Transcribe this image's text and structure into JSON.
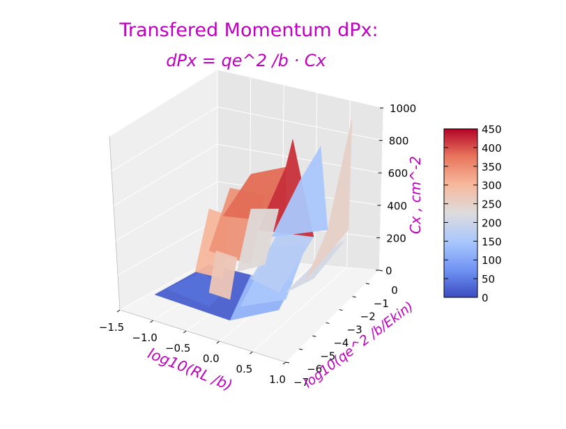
{
  "chart_data": {
    "type": "surface-3d",
    "title": "Transfered Momentum dPx:",
    "subtitle": "dPx = qe^2 /b · Cx",
    "title_color": "#c000c0",
    "x_axis": {
      "label": "log10(RL /b)",
      "ticks": [
        "−1.5",
        "−1.0",
        "−0.5",
        "0.0",
        "0.5",
        "1.0"
      ],
      "tick_values": [
        -1.5,
        -1.0,
        -0.5,
        0.0,
        0.5,
        1.0
      ],
      "range": [
        -1.5,
        1.0
      ]
    },
    "y_axis": {
      "label": "log10(qe^2 /b/Ekin)",
      "ticks": [
        "0",
        "−1",
        "−2",
        "−3",
        "−4",
        "−5",
        "−6",
        "−7"
      ],
      "tick_values": [
        0,
        -1,
        -2,
        -3,
        -4,
        -5,
        -6,
        -7
      ],
      "range": [
        -7,
        0
      ]
    },
    "z_axis": {
      "label": "Cx , cm^-2",
      "ticks": [
        "0",
        "200",
        "400",
        "600",
        "800",
        "1000"
      ],
      "tick_values": [
        0,
        200,
        400,
        600,
        800,
        1000
      ],
      "range": [
        0,
        1000
      ]
    },
    "colorbar": {
      "ticks": [
        "0",
        "50",
        "100",
        "150",
        "200",
        "250",
        "300",
        "350",
        "400",
        "450"
      ],
      "tick_values": [
        0,
        50,
        100,
        150,
        200,
        250,
        300,
        350,
        400,
        450
      ],
      "range": [
        0,
        450
      ],
      "colormap": "coolwarm",
      "colors": [
        "#3b4cc0",
        "#6f92f3",
        "#aac7fd",
        "#dddcdc",
        "#f7b89c",
        "#e7745b",
        "#b40426"
      ]
    },
    "label_color": "#c000c0",
    "surface_patches": [
      {
        "value": 20
      },
      {
        "value": 40
      },
      {
        "value": 120
      },
      {
        "value": 150
      },
      {
        "value": 170
      },
      {
        "value": 210
      },
      {
        "value": 250
      },
      {
        "value": 300
      },
      {
        "value": 340
      },
      {
        "value": 380
      },
      {
        "value": 420
      },
      {
        "value": 150
      },
      {
        "value": 230
      },
      {
        "value": 270
      }
    ]
  }
}
